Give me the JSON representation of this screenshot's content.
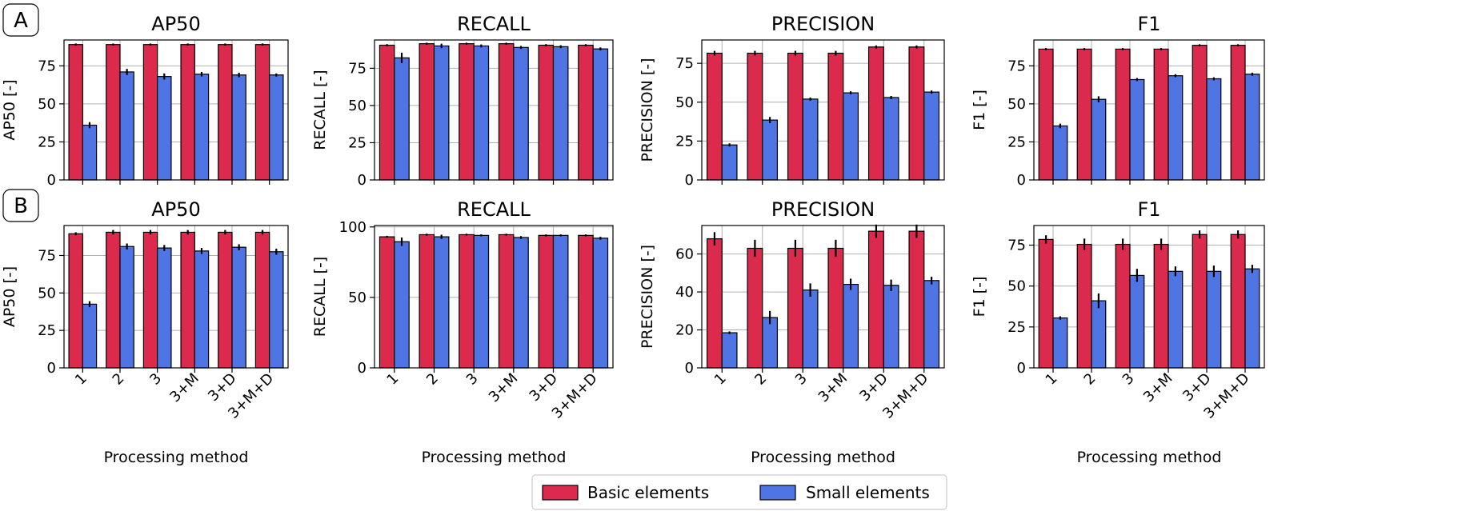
{
  "chart_data": {
    "type": "bar",
    "xlabel": "Processing method",
    "categories": [
      "1",
      "2",
      "3",
      "3+M",
      "3+D",
      "3+M+D"
    ],
    "legend": [
      {
        "name": "Basic elements",
        "color": "#dc2a4c"
      },
      {
        "name": "Small elements",
        "color": "#4f74e3"
      }
    ],
    "panels": [
      {
        "label": "A",
        "charts": [
          {
            "title": "AP50",
            "ylabel": "AP50 [-]",
            "ylim": [
              0,
              92
            ],
            "yticks": [
              0,
              25,
              50,
              75
            ],
            "series": [
              {
                "name": "Basic elements",
                "values": [
                  89,
                  89,
                  89,
                  89,
                  89,
                  89
                ],
                "errors": [
                  0.7,
                  0.7,
                  0.7,
                  0.7,
                  0.7,
                  0.7
                ]
              },
              {
                "name": "Small elements",
                "values": [
                  36,
                  71,
                  68,
                  69.5,
                  69,
                  69
                ],
                "errors": [
                  2,
                  2,
                  2,
                  1.5,
                  1.5,
                  1
                ]
              }
            ]
          },
          {
            "title": "RECALL",
            "ylabel": "RECALL [-]",
            "ylim": [
              0,
              94
            ],
            "yticks": [
              0,
              25,
              50,
              75
            ],
            "series": [
              {
                "name": "Basic elements",
                "values": [
                  90.5,
                  91.5,
                  91.5,
                  91.5,
                  90.5,
                  90.5
                ],
                "errors": [
                  0.7,
                  0.7,
                  0.7,
                  0.7,
                  0.7,
                  0.7
                ]
              },
              {
                "name": "Small elements",
                "values": [
                  82,
                  90,
                  90,
                  89,
                  89.5,
                  88
                ],
                "errors": [
                  3.5,
                  1.5,
                  1,
                  1,
                  1,
                  1
                ]
              }
            ]
          },
          {
            "title": "PRECISION",
            "ylabel": "PRECISION [-]",
            "ylim": [
              0,
              90
            ],
            "yticks": [
              0,
              25,
              50,
              75
            ],
            "series": [
              {
                "name": "Basic elements",
                "values": [
                  81.5,
                  81.5,
                  81.5,
                  81.5,
                  85.5,
                  85.5
                ],
                "errors": [
                  1.5,
                  1.5,
                  1.5,
                  1.5,
                  1,
                  1
                ]
              },
              {
                "name": "Small elements",
                "values": [
                  22.5,
                  38.5,
                  52,
                  56,
                  53,
                  56.5
                ],
                "errors": [
                  1,
                  2,
                  1,
                  1,
                  1,
                  1
                ]
              }
            ]
          },
          {
            "title": "F1",
            "ylabel": "F1 [-]",
            "ylim": [
              0,
              92
            ],
            "yticks": [
              0,
              25,
              50,
              75
            ],
            "series": [
              {
                "name": "Basic elements",
                "values": [
                  86,
                  86,
                  86,
                  86,
                  88.5,
                  88.5
                ],
                "errors": [
                  0.7,
                  0.7,
                  0.7,
                  0.7,
                  0.7,
                  0.7
                ]
              },
              {
                "name": "Small elements",
                "values": [
                  35.5,
                  53,
                  66,
                  68.5,
                  66.5,
                  69.5
                ],
                "errors": [
                  1.5,
                  2,
                  1,
                  1,
                  1,
                  1
                ]
              }
            ]
          }
        ]
      },
      {
        "label": "B",
        "charts": [
          {
            "title": "AP50",
            "ylabel": "AP50 [-]",
            "ylim": [
              0,
              95
            ],
            "yticks": [
              0,
              25,
              50,
              75
            ],
            "series": [
              {
                "name": "Basic elements",
                "values": [
                  89.5,
                  90.5,
                  90.5,
                  90.5,
                  90.5,
                  90.5
                ],
                "errors": [
                  1,
                  1.5,
                  1.5,
                  1.5,
                  1.5,
                  1.5
                ]
              },
              {
                "name": "Small elements",
                "values": [
                  42.5,
                  81,
                  80,
                  78,
                  80.5,
                  77.5
                ],
                "errors": [
                  2,
                  2,
                  2,
                  2,
                  2,
                  2
                ]
              }
            ]
          },
          {
            "title": "RECALL",
            "ylabel": "RECALL [-]",
            "ylim": [
              0,
              101
            ],
            "yticks": [
              0,
              50,
              100
            ],
            "series": [
              {
                "name": "Basic elements",
                "values": [
                  93,
                  94.5,
                  94.5,
                  94.5,
                  94,
                  94
                ],
                "errors": [
                  0.7,
                  0.7,
                  0.7,
                  0.7,
                  0.7,
                  0.7
                ]
              },
              {
                "name": "Small elements",
                "values": [
                  89.5,
                  93,
                  94,
                  92.5,
                  94,
                  92
                ],
                "errors": [
                  3,
                  1.5,
                  0.7,
                  1,
                  0.7,
                  1
                ]
              }
            ]
          },
          {
            "title": "PRECISION",
            "ylabel": "PRECISION [-]",
            "ylim": [
              0,
              75
            ],
            "yticks": [
              0,
              20,
              40,
              60
            ],
            "series": [
              {
                "name": "Basic elements",
                "values": [
                  68,
                  63,
                  63,
                  63,
                  72,
                  72
                ],
                "errors": [
                  3.5,
                  4.5,
                  4.5,
                  4.5,
                  3.5,
                  3.5
                ]
              },
              {
                "name": "Small elements",
                "values": [
                  18.5,
                  26.5,
                  41,
                  44,
                  43.5,
                  46
                ],
                "errors": [
                  0.7,
                  3.5,
                  3.5,
                  3,
                  3,
                  2
                ]
              }
            ]
          },
          {
            "title": "F1",
            "ylabel": "F1 [-]",
            "ylim": [
              0,
              87
            ],
            "yticks": [
              0,
              25,
              50,
              75
            ],
            "series": [
              {
                "name": "Basic elements",
                "values": [
                  78.5,
                  75.5,
                  75.5,
                  75.5,
                  81.5,
                  81.5
                ],
                "errors": [
                  2.5,
                  3.5,
                  3.5,
                  3.5,
                  2.5,
                  2.5
                ]
              },
              {
                "name": "Small elements",
                "values": [
                  30.5,
                  41,
                  56.5,
                  59,
                  59,
                  60.5
                ],
                "errors": [
                  1,
                  4.5,
                  4,
                  3,
                  3.5,
                  2.5
                ]
              }
            ]
          }
        ]
      }
    ]
  }
}
